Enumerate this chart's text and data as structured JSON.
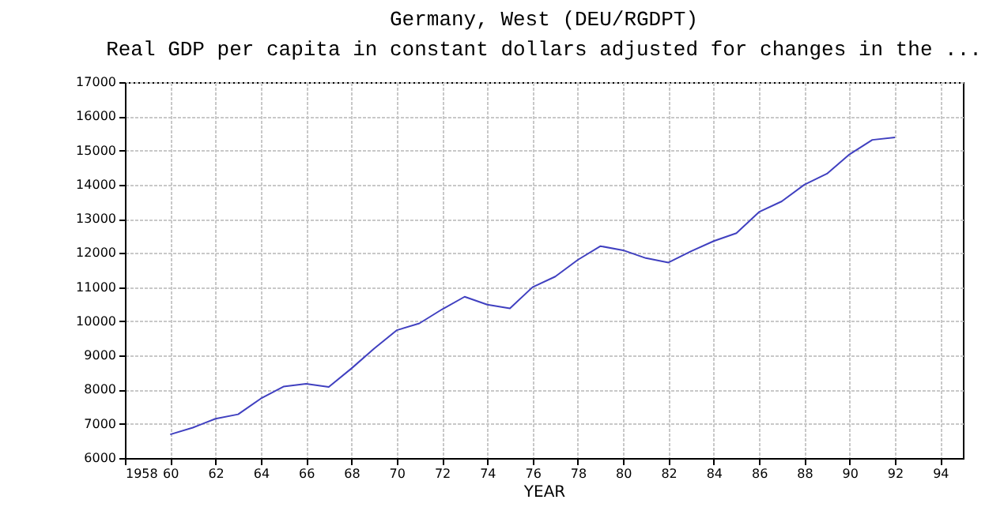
{
  "chart_data": {
    "type": "line",
    "title": "Germany, West (DEU/RGDPT)",
    "subtitle": "Real GDP per capita in constant dollars adjusted for changes in the ...",
    "xlabel": "YEAR",
    "x": [
      1960,
      1961,
      1962,
      1963,
      1964,
      1965,
      1966,
      1967,
      1968,
      1969,
      1970,
      1971,
      1972,
      1973,
      1974,
      1975,
      1976,
      1977,
      1978,
      1979,
      1980,
      1981,
      1982,
      1983,
      1984,
      1985,
      1986,
      1987,
      1988,
      1989,
      1990,
      1991,
      1992
    ],
    "series": [
      {
        "color": "#4040c0",
        "values": [
          6690,
          6890,
          7150,
          7280,
          7740,
          8090,
          8170,
          8080,
          8620,
          9200,
          9740,
          9940,
          10350,
          10720,
          10490,
          10380,
          11000,
          11310,
          11800,
          12200,
          12080,
          11850,
          11720,
          12050,
          12350,
          12580,
          13200,
          13510,
          14000,
          14320,
          14890,
          15310,
          15380
        ]
      }
    ],
    "xlim": [
      1958,
      1995
    ],
    "xticks": [
      1958,
      {
        "value": 1960,
        "label": "60"
      },
      {
        "value": 1962,
        "label": "62"
      },
      {
        "value": 1964,
        "label": "64"
      },
      {
        "value": 1966,
        "label": "66"
      },
      {
        "value": 1968,
        "label": "68"
      },
      {
        "value": 1970,
        "label": "70"
      },
      {
        "value": 1972,
        "label": "72"
      },
      {
        "value": 1974,
        "label": "74"
      },
      {
        "value": 1976,
        "label": "76"
      },
      {
        "value": 1978,
        "label": "78"
      },
      {
        "value": 1980,
        "label": "80"
      },
      {
        "value": 1982,
        "label": "82"
      },
      {
        "value": 1984,
        "label": "84"
      },
      {
        "value": 1986,
        "label": "86"
      },
      {
        "value": 1988,
        "label": "88"
      },
      {
        "value": 1990,
        "label": "90"
      },
      {
        "value": 1992,
        "label": "92"
      },
      {
        "value": 1994,
        "label": "94"
      }
    ],
    "ylim": [
      6000,
      17000
    ],
    "yticks": [
      6000,
      7000,
      8000,
      9000,
      10000,
      11000,
      12000,
      13000,
      14000,
      15000,
      16000,
      17000
    ],
    "grid": true,
    "line_style": "solid",
    "marker": "none"
  }
}
